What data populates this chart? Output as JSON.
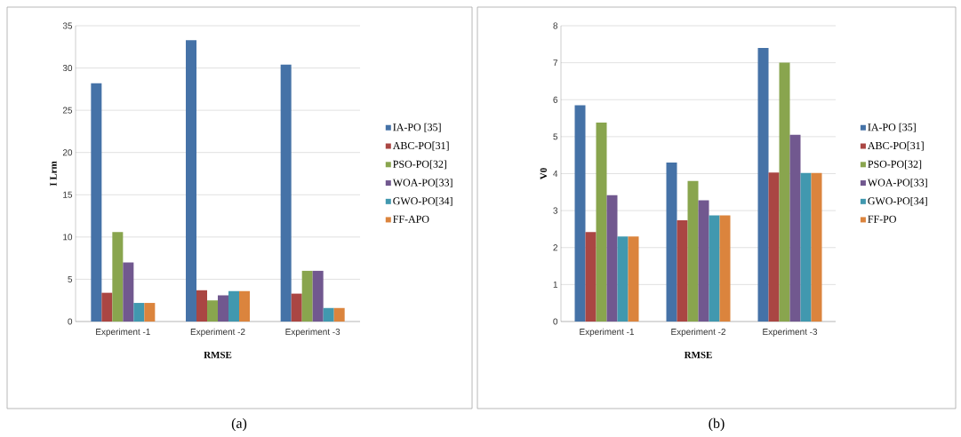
{
  "chart_data": [
    {
      "type": "bar",
      "xlabel": "RMSE",
      "ylabel": "I Lrm",
      "categories": [
        "Experiment -1",
        "Experiment -2",
        "Experiment -3"
      ],
      "series": [
        {
          "name": "IA-PO [35]",
          "color": "#4572a7",
          "values": [
            28.2,
            33.3,
            30.4
          ]
        },
        {
          "name": "ABC-PO[31]",
          "color": "#aa4643",
          "values": [
            3.4,
            3.7,
            3.3
          ]
        },
        {
          "name": "PSO-PO[32]",
          "color": "#89a54e",
          "values": [
            10.6,
            2.5,
            6.0
          ]
        },
        {
          "name": "WOA-PO[33]",
          "color": "#71588f",
          "values": [
            7.0,
            3.1,
            6.0
          ]
        },
        {
          "name": "GWO-PO[34]",
          "color": "#4198af",
          "values": [
            2.2,
            3.6,
            1.6
          ]
        },
        {
          "name": "FF-APO",
          "color": "#db843d",
          "values": [
            2.2,
            3.6,
            1.6
          ]
        }
      ],
      "ylim": [
        0,
        35
      ],
      "yticks": [
        0,
        5,
        10,
        15,
        20,
        25,
        30,
        35
      ],
      "grid": "y",
      "legend": "right",
      "annotations": [
        "(a)"
      ]
    },
    {
      "type": "bar",
      "xlabel": "RMSE",
      "ylabel": "V0",
      "categories": [
        "Experiment -1",
        "Experiment -2",
        "Experiment -3"
      ],
      "series": [
        {
          "name": "IA-PO [35]",
          "color": "#4572a7",
          "values": [
            5.85,
            4.3,
            7.4
          ]
        },
        {
          "name": "ABC-PO[31]",
          "color": "#aa4643",
          "values": [
            2.42,
            2.74,
            4.03
          ]
        },
        {
          "name": "PSO-PO[32]",
          "color": "#89a54e",
          "values": [
            5.38,
            3.8,
            7.0
          ]
        },
        {
          "name": "WOA-PO[33]",
          "color": "#71588f",
          "values": [
            3.42,
            3.28,
            5.05
          ]
        },
        {
          "name": "GWO-PO[34]",
          "color": "#4198af",
          "values": [
            2.3,
            2.87,
            4.02
          ]
        },
        {
          "name": "FF-PO",
          "color": "#db843d",
          "values": [
            2.3,
            2.87,
            4.02
          ]
        }
      ],
      "ylim": [
        0,
        8
      ],
      "yticks": [
        0,
        1,
        2,
        3,
        4,
        5,
        6,
        7,
        8
      ],
      "grid": "y",
      "legend": "right",
      "annotations": [
        "(b)"
      ]
    }
  ]
}
